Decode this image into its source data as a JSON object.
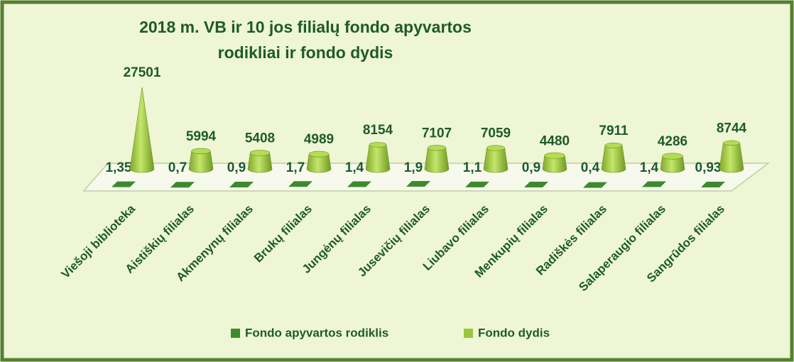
{
  "chart_data": {
    "type": "bar3d",
    "title": "2018 m. VB ir 10 jos filialų  fondo apyvartos",
    "subtitle": "rodikliai ir fondo dydis",
    "categories": [
      "Viešoji biblioteka",
      "Aistiškių filialas",
      "Akmenynų filialas",
      "Brukų filialas",
      "Jungėnų filialas",
      "Jusevičių filialas",
      "Liubavo filialas",
      "Menkupių filialas",
      "Radiškės filialas",
      "Salaperaugio filialas",
      "Sangrūdos filialas"
    ],
    "series": [
      {
        "name": "Fondo apyvartos rodiklis",
        "color": "#3d8a2e",
        "values": [
          1.35,
          0.7,
          0.9,
          1.7,
          1.4,
          1.9,
          1.1,
          0.9,
          0.4,
          1.4,
          0.93
        ],
        "value_labels": [
          "1,35",
          "0,7",
          "0,9",
          "1,7",
          "1,4",
          "1,9",
          "1,1",
          "0,9",
          "0,4",
          "1,4",
          "0,93"
        ]
      },
      {
        "name": "Fondo dydis",
        "color": "#9cc63c",
        "values": [
          27501,
          5994,
          5408,
          4989,
          8154,
          7107,
          7059,
          4480,
          7911,
          4286,
          8744
        ]
      }
    ],
    "legend": "bottom"
  }
}
